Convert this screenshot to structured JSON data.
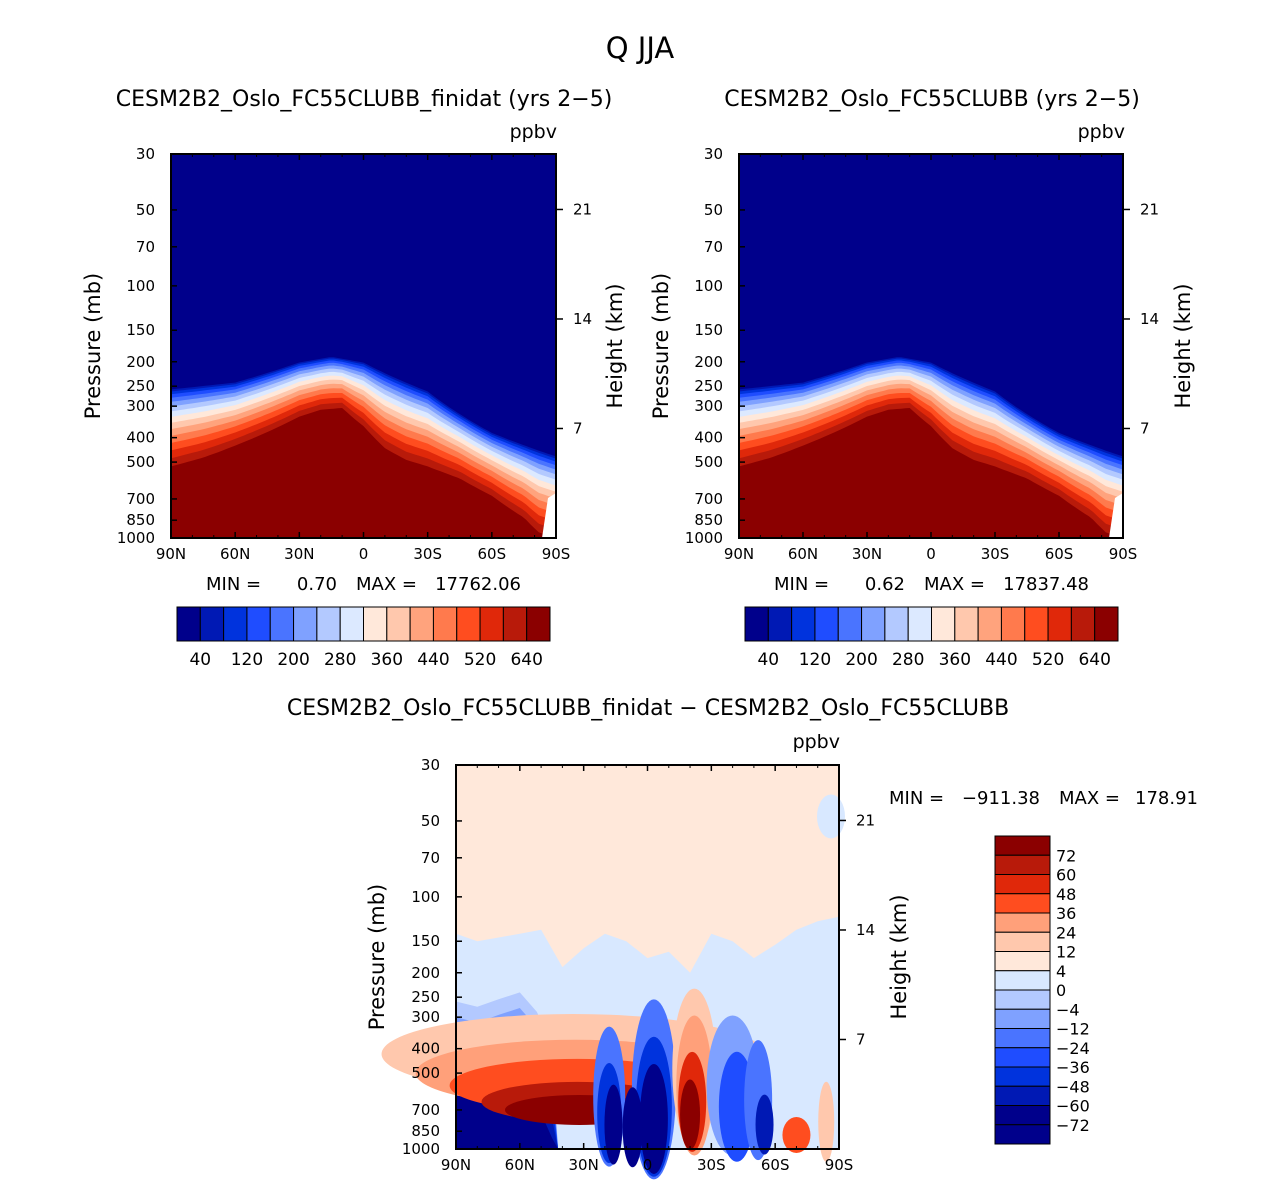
{
  "figure_title": "Q JJA",
  "units": "ppbv",
  "chart_data": [
    {
      "type": "heatmap",
      "title": "CESM2B2_Oslo_FC55CLUBB_finidat (yrs 2−5)",
      "units": "ppbv",
      "ylabel": "Pressure (mb)",
      "y2label": "Height (km)",
      "x_ticks": [
        "90N",
        "60N",
        "30N",
        "0",
        "30S",
        "60S",
        "90S"
      ],
      "x_values": [
        90,
        60,
        30,
        0,
        -30,
        -60,
        -90
      ],
      "y_ticks": [
        30,
        50,
        70,
        100,
        150,
        200,
        250,
        300,
        400,
        500,
        700,
        850,
        1000
      ],
      "y_tick_labels": [
        "30",
        "50",
        "70",
        "100",
        "150",
        "200",
        "250",
        "300",
        "400",
        "500",
        "700",
        "850",
        "1000"
      ],
      "y2_ticks": [
        "21",
        "14",
        "7"
      ],
      "ylim": [
        1000,
        30
      ],
      "min_label": "MIN =",
      "min_value": "0.70",
      "max_label": "MAX =",
      "max_value": "17762.06",
      "colorbar_labels": [
        "40",
        "120",
        "200",
        "280",
        "360",
        "440",
        "520",
        "640"
      ]
    },
    {
      "type": "heatmap",
      "title": "CESM2B2_Oslo_FC55CLUBB (yrs 2−5)",
      "units": "ppbv",
      "ylabel": "Pressure (mb)",
      "y2label": "Height (km)",
      "x_ticks": [
        "90N",
        "60N",
        "30N",
        "0",
        "30S",
        "60S",
        "90S"
      ],
      "x_values": [
        90,
        60,
        30,
        0,
        -30,
        -60,
        -90
      ],
      "y_ticks": [
        30,
        50,
        70,
        100,
        150,
        200,
        250,
        300,
        400,
        500,
        700,
        850,
        1000
      ],
      "y_tick_labels": [
        "30",
        "50",
        "70",
        "100",
        "150",
        "200",
        "250",
        "300",
        "400",
        "500",
        "700",
        "850",
        "1000"
      ],
      "y2_ticks": [
        "21",
        "14",
        "7"
      ],
      "ylim": [
        1000,
        30
      ],
      "min_label": "MIN =",
      "min_value": "0.62",
      "max_label": "MAX =",
      "max_value": "17837.48",
      "colorbar_labels": [
        "40",
        "120",
        "200",
        "280",
        "360",
        "440",
        "520",
        "640"
      ]
    },
    {
      "type": "heatmap",
      "title": "CESM2B2_Oslo_FC55CLUBB_finidat − CESM2B2_Oslo_FC55CLUBB",
      "units": "ppbv",
      "ylabel": "Pressure (mb)",
      "y2label": "Height (km)",
      "x_ticks": [
        "90N",
        "60N",
        "30N",
        "0",
        "30S",
        "60S",
        "90S"
      ],
      "x_values": [
        90,
        60,
        30,
        0,
        -30,
        -60,
        -90
      ],
      "y_ticks": [
        30,
        50,
        70,
        100,
        150,
        200,
        250,
        300,
        400,
        500,
        700,
        850,
        1000
      ],
      "y_tick_labels": [
        "30",
        "50",
        "70",
        "100",
        "150",
        "200",
        "250",
        "300",
        "400",
        "500",
        "700",
        "850",
        "1000"
      ],
      "y2_ticks": [
        "21",
        "14",
        "7"
      ],
      "ylim": [
        1000,
        30
      ],
      "min_label": "MIN =",
      "min_value": "−911.38",
      "max_label": "MAX =",
      "max_value": "178.91",
      "colorbar_labels": [
        "72",
        "60",
        "48",
        "36",
        "24",
        "12",
        "4",
        "0",
        "−4",
        "−12",
        "−24",
        "−36",
        "−48",
        "−60",
        "−72"
      ]
    }
  ],
  "colors": {
    "abs_scale": [
      "#00008b",
      "#0019b4",
      "#0033dd",
      "#1f4dff",
      "#4a74ff",
      "#7fa1ff",
      "#b3c9ff",
      "#dce9ff",
      "#ffe8da",
      "#ffc8ad",
      "#ffa37d",
      "#ff7a4d",
      "#ff4d1f",
      "#e0280a",
      "#b81a0a",
      "#8b0000"
    ],
    "diff_scale": [
      "#8b0000",
      "#b81a0a",
      "#e0280a",
      "#ff4d1f",
      "#ffa07a",
      "#ffc8ad",
      "#ffe8da",
      "#d8e8ff",
      "#b3c9ff",
      "#7fa1ff",
      "#4a74ff",
      "#1f4dff",
      "#0033dd",
      "#0019b4",
      "#00008b"
    ]
  }
}
